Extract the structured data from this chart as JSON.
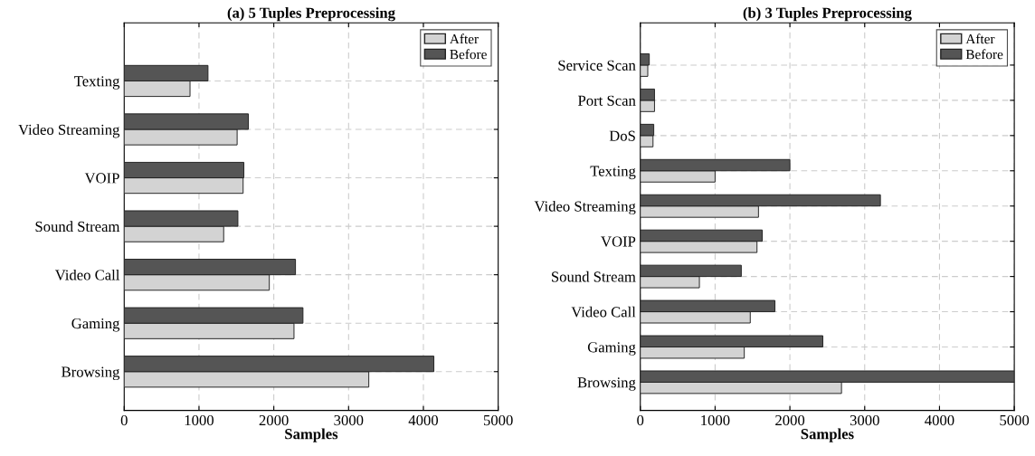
{
  "chart_data": [
    {
      "type": "bar",
      "orientation": "horizontal",
      "title": "(a) 5 Tuples Preprocessing",
      "xlabel": "Samples",
      "categories": [
        "Texting",
        "Video Streaming",
        "VOIP",
        "Sound Stream",
        "Video Call",
        "Gaming",
        "Browsing"
      ],
      "series": [
        {
          "name": "After",
          "color": "#d3d3d3",
          "values": [
            880,
            1510,
            1590,
            1330,
            1940,
            2270,
            3270
          ]
        },
        {
          "name": "Before",
          "color": "#555555",
          "values": [
            1120,
            1660,
            1600,
            1520,
            2290,
            2390,
            4140
          ]
        }
      ],
      "xlim": [
        0,
        5000
      ],
      "xticks": [
        0,
        1000,
        2000,
        3000,
        4000,
        5000
      ],
      "grid": true,
      "legend": "top right"
    },
    {
      "type": "bar",
      "orientation": "horizontal",
      "title": "(b) 3 Tuples Preprocessing",
      "xlabel": "Samples",
      "categories": [
        "Service Scan",
        "Port Scan",
        "DoS",
        "Texting",
        "Video Streaming",
        "VOIP",
        "Sound Stream",
        "Video Call",
        "Gaming",
        "Browsing"
      ],
      "series": [
        {
          "name": "After",
          "color": "#d3d3d3",
          "values": [
            100,
            190,
            170,
            1000,
            1580,
            1560,
            790,
            1470,
            1390,
            2690
          ]
        },
        {
          "name": "Before",
          "color": "#555555",
          "values": [
            120,
            190,
            180,
            2000,
            3210,
            1630,
            1350,
            1800,
            2440,
            5000
          ]
        }
      ],
      "xlim": [
        0,
        5000
      ],
      "xticks": [
        0,
        1000,
        2000,
        3000,
        4000,
        5000
      ],
      "grid": true,
      "legend": "top right"
    }
  ]
}
